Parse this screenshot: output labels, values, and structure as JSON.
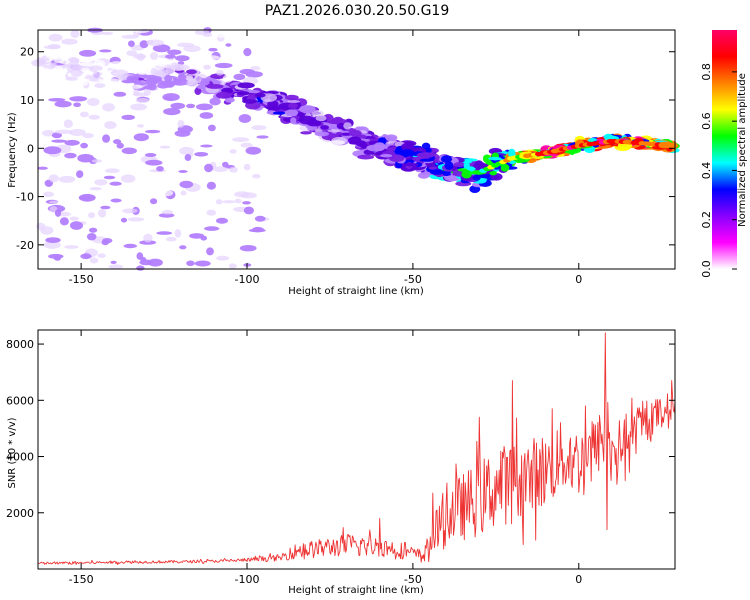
{
  "title": "PAZ1.2026.030.20.50.G19",
  "colors": {
    "snr_line": "#ee3333",
    "frame": "#000000",
    "colormap": [
      "#ffffff",
      "#e6d3ff",
      "#b380ff",
      "#7a1fe0",
      "#5a00d8",
      "#0000ff",
      "#00ffff",
      "#00ff00",
      "#ffff00",
      "#ff8000",
      "#ff0000",
      "#ff00aa"
    ]
  },
  "chart_data": [
    {
      "type": "heatmap",
      "name": "spectrogram",
      "xlabel": "Height of straight line (km)",
      "ylabel": "Frequency (Hz)",
      "xlim": [
        -163,
        29
      ],
      "ylim": [
        -25,
        24.5
      ],
      "x_ticks": [
        -150,
        -100,
        -50,
        0
      ],
      "x_tick_labels": [
        "-150",
        "-100",
        "-50",
        "0"
      ],
      "y_ticks": [
        20,
        10,
        0,
        -10,
        -20
      ],
      "y_tick_labels": [
        "20",
        "10",
        "0",
        "-10",
        "-20"
      ],
      "ridge": {
        "x": [
          -160,
          -140,
          -130,
          -120,
          -110,
          -100,
          -90,
          -80,
          -70,
          -60,
          -50,
          -40,
          -30,
          -20,
          -10,
          0,
          10,
          20,
          29
        ],
        "frequency": [
          18,
          15,
          14,
          16,
          13,
          11,
          9,
          5,
          3,
          0,
          -2,
          -4,
          -5,
          -2,
          -1,
          0.5,
          1.5,
          1,
          0.5
        ],
        "amplitude": [
          0.1,
          0.12,
          0.15,
          0.18,
          0.22,
          0.28,
          0.3,
          0.25,
          0.25,
          0.3,
          0.35,
          0.45,
          0.5,
          0.7,
          0.85,
          0.9,
          0.9,
          0.85,
          0.75
        ]
      },
      "colorbar": {
        "label": "Normalized spectral amplitude",
        "range": [
          0,
          0.97
        ],
        "ticks": [
          0.0,
          0.2,
          0.4,
          0.6,
          0.8
        ],
        "tick_labels": [
          "0.0",
          "0.2",
          "0.4",
          "0.6",
          "0.8"
        ]
      }
    },
    {
      "type": "line",
      "name": "snr",
      "xlabel": "Height of straight line (km)",
      "ylabel": "SNR (10 * v/v)",
      "xlim": [
        -163,
        29
      ],
      "ylim": [
        0,
        8500
      ],
      "x_ticks": [
        -150,
        -100,
        -50,
        0
      ],
      "x_tick_labels": [
        "-150",
        "-100",
        "-50",
        "0"
      ],
      "y_ticks": [
        2000,
        4000,
        6000,
        8000
      ],
      "y_tick_labels": [
        "2000",
        "4000",
        "6000",
        "8000"
      ],
      "series": [
        {
          "name": "SNR",
          "x": [
            -163,
            -150,
            -140,
            -130,
            -120,
            -110,
            -100,
            -95,
            -90,
            -85,
            -80,
            -75,
            -70,
            -65,
            -60,
            -55,
            -50,
            -47,
            -45,
            -43,
            -40,
            -35,
            -30,
            -25,
            -20,
            -15,
            -10,
            -5,
            0,
            5,
            8,
            10,
            15,
            20,
            25,
            29
          ],
          "mean": [
            200,
            220,
            240,
            250,
            260,
            280,
            320,
            360,
            400,
            650,
            700,
            780,
            850,
            820,
            800,
            700,
            550,
            480,
            800,
            1300,
            1900,
            2200,
            2500,
            2900,
            3100,
            3300,
            3500,
            4000,
            3800,
            4300,
            4800,
            4200,
            4600,
            5200,
            5600,
            5900
          ],
          "spread": [
            60,
            60,
            60,
            60,
            60,
            60,
            80,
            120,
            150,
            350,
            400,
            450,
            500,
            500,
            450,
            400,
            300,
            250,
            700,
            1000,
            1400,
            1500,
            1700,
            1800,
            1800,
            1700,
            1700,
            1600,
            1500,
            1300,
            1500,
            1300,
            1100,
            900,
            700,
            600
          ],
          "peaks": [
            {
              "x": -83,
              "y": 900
            },
            {
              "x": -60,
              "y": 1800
            },
            {
              "x": -44,
              "y": 2700
            },
            {
              "x": -30,
              "y": 5400
            },
            {
              "x": -20,
              "y": 6700
            },
            {
              "x": -8,
              "y": 5700
            },
            {
              "x": 2,
              "y": 5800
            },
            {
              "x": 8,
              "y": 8400
            },
            {
              "x": 8.5,
              "y": 1400
            },
            {
              "x": 28,
              "y": 6700
            }
          ]
        }
      ]
    }
  ]
}
